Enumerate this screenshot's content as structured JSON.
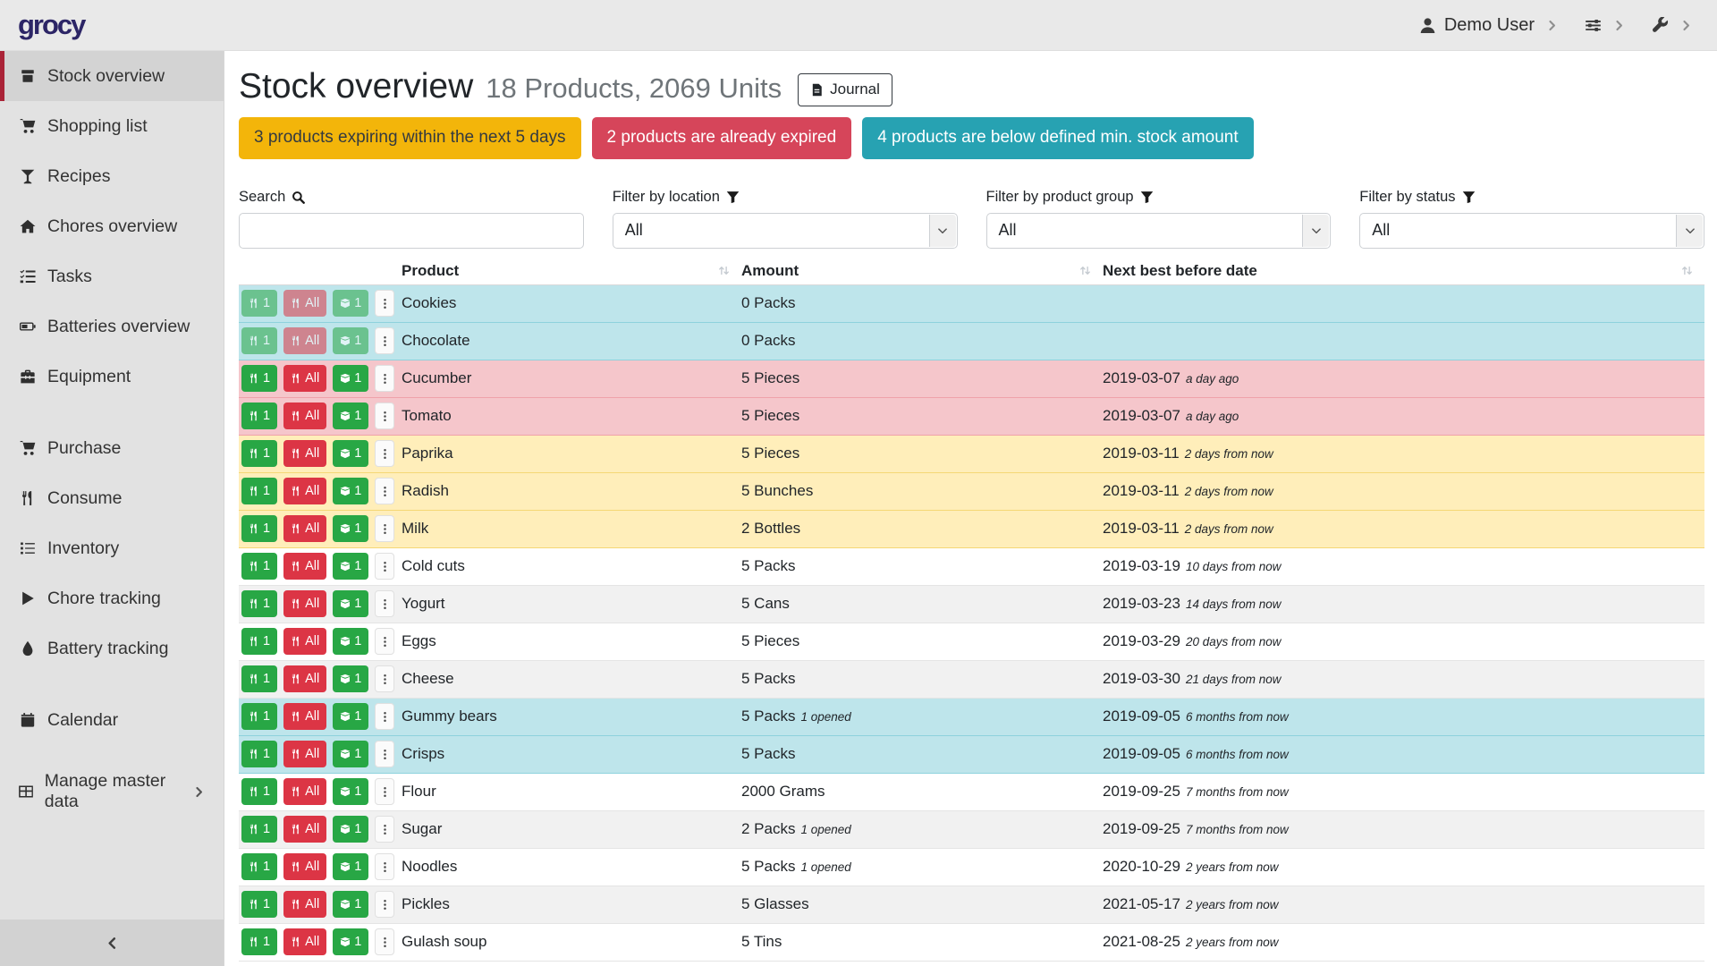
{
  "brand": "grocy",
  "topbar": {
    "user_label": "Demo User",
    "menus": [
      {
        "name": "user-menu",
        "icon": "user-icon",
        "label": "Demo User"
      },
      {
        "name": "settings-menu",
        "icon": "sliders-icon",
        "label": ""
      },
      {
        "name": "admin-menu",
        "icon": "wrench-icon",
        "label": ""
      }
    ]
  },
  "sidebar": {
    "items": [
      {
        "label": "Stock overview",
        "icon": "boxes-icon",
        "active": true
      },
      {
        "label": "Shopping list",
        "icon": "cart-icon"
      },
      {
        "label": "Recipes",
        "icon": "glass-martini-icon"
      },
      {
        "label": "Chores overview",
        "icon": "home-icon"
      },
      {
        "label": "Tasks",
        "icon": "tasks-icon"
      },
      {
        "label": "Batteries overview",
        "icon": "battery-icon"
      },
      {
        "label": "Equipment",
        "icon": "toolbox-icon"
      },
      {
        "label": "Purchase",
        "icon": "cart-icon",
        "new_group": true
      },
      {
        "label": "Consume",
        "icon": "utensils-icon"
      },
      {
        "label": "Inventory",
        "icon": "list-icon"
      },
      {
        "label": "Chore tracking",
        "icon": "play-icon"
      },
      {
        "label": "Battery tracking",
        "icon": "tint-icon"
      },
      {
        "label": "Calendar",
        "icon": "calendar-icon",
        "new_group": true
      },
      {
        "label": "Manage master data",
        "icon": "table-icon",
        "new_group": true,
        "has_submenu": true
      }
    ]
  },
  "page": {
    "title": "Stock overview",
    "subtitle": "18 Products, 2069 Units",
    "journal_label": "Journal",
    "badges": [
      {
        "text": "3 products expiring within the next 5 days",
        "bg": "#f3b50a",
        "fg": "#343a40"
      },
      {
        "text": "2 products are already expired",
        "bg": "#d6455a",
        "fg": "#ffffff"
      },
      {
        "text": "4 products are below defined min. stock amount",
        "bg": "#27a2b2",
        "fg": "#ffffff"
      }
    ]
  },
  "filters": [
    {
      "id": "search",
      "type": "search",
      "label": "Search",
      "icon": "search-icon",
      "value": ""
    },
    {
      "id": "location",
      "type": "select",
      "label": "Filter by location",
      "icon": "filter-icon",
      "value": "All"
    },
    {
      "id": "product-group",
      "type": "select",
      "label": "Filter by product group",
      "icon": "filter-icon",
      "value": "All"
    },
    {
      "id": "status",
      "type": "select",
      "label": "Filter by status",
      "icon": "filter-icon",
      "value": "All"
    }
  ],
  "table": {
    "columns": [
      "Product",
      "Amount",
      "Next best before date"
    ],
    "actions": [
      {
        "id": "consume-one",
        "label": "1",
        "icon": "utensils-icon",
        "color": "green"
      },
      {
        "id": "consume-all",
        "label": "All",
        "icon": "utensils-icon",
        "color": "red"
      },
      {
        "id": "open-one",
        "label": "1",
        "icon": "box-open-icon",
        "color": "green"
      },
      {
        "id": "row-menu",
        "label": "",
        "icon": "ellipsis-v-icon",
        "color": "plain"
      }
    ],
    "rows": [
      {
        "product": "Cookies",
        "amount": "0 Packs",
        "amount_note": "",
        "bbd": "",
        "bbd_note": "",
        "status": "info",
        "disabled": true
      },
      {
        "product": "Chocolate",
        "amount": "0 Packs",
        "amount_note": "",
        "bbd": "",
        "bbd_note": "",
        "status": "info",
        "disabled": true
      },
      {
        "product": "Cucumber",
        "amount": "5 Pieces",
        "amount_note": "",
        "bbd": "2019-03-07",
        "bbd_note": "a day ago",
        "status": "danger"
      },
      {
        "product": "Tomato",
        "amount": "5 Pieces",
        "amount_note": "",
        "bbd": "2019-03-07",
        "bbd_note": "a day ago",
        "status": "danger"
      },
      {
        "product": "Paprika",
        "amount": "5 Pieces",
        "amount_note": "",
        "bbd": "2019-03-11",
        "bbd_note": "2 days from now",
        "status": "warning"
      },
      {
        "product": "Radish",
        "amount": "5 Bunches",
        "amount_note": "",
        "bbd": "2019-03-11",
        "bbd_note": "2 days from now",
        "status": "warning"
      },
      {
        "product": "Milk",
        "amount": "2 Bottles",
        "amount_note": "",
        "bbd": "2019-03-11",
        "bbd_note": "2 days from now",
        "status": "warning"
      },
      {
        "product": "Cold cuts",
        "amount": "5 Packs",
        "amount_note": "",
        "bbd": "2019-03-19",
        "bbd_note": "10 days from now",
        "status": "plain"
      },
      {
        "product": "Yogurt",
        "amount": "5 Cans",
        "amount_note": "",
        "bbd": "2019-03-23",
        "bbd_note": "14 days from now",
        "status": "plain"
      },
      {
        "product": "Eggs",
        "amount": "5 Pieces",
        "amount_note": "",
        "bbd": "2019-03-29",
        "bbd_note": "20 days from now",
        "status": "plain"
      },
      {
        "product": "Cheese",
        "amount": "5 Packs",
        "amount_note": "",
        "bbd": "2019-03-30",
        "bbd_note": "21 days from now",
        "status": "plain"
      },
      {
        "product": "Gummy bears",
        "amount": "5 Packs",
        "amount_note": "1 opened",
        "bbd": "2019-09-05",
        "bbd_note": "6 months from now",
        "status": "info"
      },
      {
        "product": "Crisps",
        "amount": "5 Packs",
        "amount_note": "",
        "bbd": "2019-09-05",
        "bbd_note": "6 months from now",
        "status": "info"
      },
      {
        "product": "Flour",
        "amount": "2000 Grams",
        "amount_note": "",
        "bbd": "2019-09-25",
        "bbd_note": "7 months from now",
        "status": "plain"
      },
      {
        "product": "Sugar",
        "amount": "2 Packs",
        "amount_note": "1 opened",
        "bbd": "2019-09-25",
        "bbd_note": "7 months from now",
        "status": "plain"
      },
      {
        "product": "Noodles",
        "amount": "5 Packs",
        "amount_note": "1 opened",
        "bbd": "2020-10-29",
        "bbd_note": "2 years from now",
        "status": "plain"
      },
      {
        "product": "Pickles",
        "amount": "5 Glasses",
        "amount_note": "",
        "bbd": "2021-05-17",
        "bbd_note": "2 years from now",
        "status": "plain"
      },
      {
        "product": "Gulash soup",
        "amount": "5 Tins",
        "amount_note": "",
        "bbd": "2021-08-25",
        "bbd_note": "2 years from now",
        "status": "plain"
      }
    ]
  },
  "colors": {
    "brand_text": "#2c2566",
    "sidebar_active_accent": "#aa2337",
    "button_green": "#28a745",
    "button_red": "#dc3545",
    "row_bg": {
      "info": "#bee5eb",
      "danger": "#f5c6cb",
      "warning": "#ffeeba",
      "plain": "#ffffff",
      "stripe": "#f1f1f1"
    },
    "row_border": {
      "info": "#8ed2dd",
      "danger": "#efa2aa",
      "warning": "#f5d775",
      "plain": "#e4e4e4"
    }
  }
}
